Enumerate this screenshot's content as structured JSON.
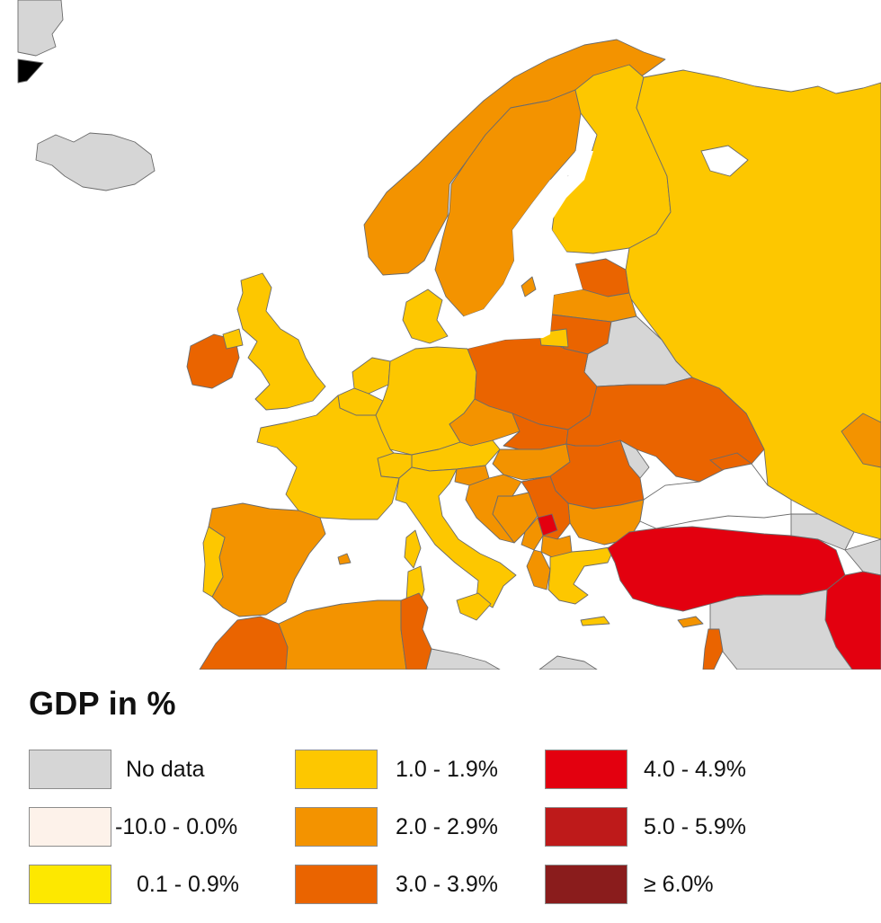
{
  "legend": {
    "title": "GDP in %",
    "items": [
      {
        "id": "no-data",
        "label": "No data",
        "color": "#d6d6d6"
      },
      {
        "id": "neg",
        "label": "-10.0 - 0.0%",
        "color": "#fdf2ea"
      },
      {
        "id": "c01",
        "label": "0.1 - 0.9%",
        "color": "#fde800"
      },
      {
        "id": "c10",
        "label": "1.0 - 1.9%",
        "color": "#fdc700"
      },
      {
        "id": "c20",
        "label": "2.0 - 2.9%",
        "color": "#f39300"
      },
      {
        "id": "c30",
        "label": "3.0 - 3.9%",
        "color": "#ea6400"
      },
      {
        "id": "c40",
        "label": "4.0 - 4.9%",
        "color": "#e3000f"
      },
      {
        "id": "c50",
        "label": "5.0 - 5.9%",
        "color": "#be1a1a"
      },
      {
        "id": "c60",
        "label": "≥ 6.0%",
        "color": "#8a1c1c"
      }
    ]
  },
  "map": {
    "ocean_color": "#ffffff",
    "countries": [
      {
        "name": "greenland",
        "class": "no-data"
      },
      {
        "name": "iceland",
        "class": "no-data"
      },
      {
        "name": "ireland",
        "class": "c30"
      },
      {
        "name": "united-kingdom",
        "class": "c10"
      },
      {
        "name": "norway",
        "class": "c20"
      },
      {
        "name": "sweden",
        "class": "c20"
      },
      {
        "name": "finland",
        "class": "c10"
      },
      {
        "name": "russia",
        "class": "c10"
      },
      {
        "name": "estonia",
        "class": "c30"
      },
      {
        "name": "latvia",
        "class": "c20"
      },
      {
        "name": "lithuania",
        "class": "c30"
      },
      {
        "name": "belarus",
        "class": "no-data"
      },
      {
        "name": "denmark",
        "class": "c10"
      },
      {
        "name": "netherlands",
        "class": "c10"
      },
      {
        "name": "belgium",
        "class": "c10"
      },
      {
        "name": "germany",
        "class": "c10"
      },
      {
        "name": "poland",
        "class": "c30"
      },
      {
        "name": "czechia",
        "class": "c20"
      },
      {
        "name": "slovakia",
        "class": "c30"
      },
      {
        "name": "austria",
        "class": "c10"
      },
      {
        "name": "switzerland",
        "class": "c10"
      },
      {
        "name": "hungary",
        "class": "c20"
      },
      {
        "name": "ukraine",
        "class": "c30"
      },
      {
        "name": "moldova",
        "class": "no-data"
      },
      {
        "name": "romania",
        "class": "c30"
      },
      {
        "name": "bulgaria",
        "class": "c20"
      },
      {
        "name": "france",
        "class": "c10"
      },
      {
        "name": "spain",
        "class": "c20"
      },
      {
        "name": "portugal",
        "class": "c10"
      },
      {
        "name": "italy",
        "class": "c10"
      },
      {
        "name": "slovenia",
        "class": "c20"
      },
      {
        "name": "croatia",
        "class": "c20"
      },
      {
        "name": "bosnia",
        "class": "c20"
      },
      {
        "name": "serbia",
        "class": "c30"
      },
      {
        "name": "kosovo",
        "class": "c40"
      },
      {
        "name": "montenegro",
        "class": "c20"
      },
      {
        "name": "north-macedonia",
        "class": "c20"
      },
      {
        "name": "albania",
        "class": "c20"
      },
      {
        "name": "greece",
        "class": "c10"
      },
      {
        "name": "turkey",
        "class": "c40"
      },
      {
        "name": "georgia",
        "class": "no-data"
      },
      {
        "name": "syria-iraq",
        "class": "no-data"
      },
      {
        "name": "iraq-east",
        "class": "c40"
      },
      {
        "name": "cyprus",
        "class": "c20"
      },
      {
        "name": "morocco",
        "class": "c30"
      },
      {
        "name": "algeria",
        "class": "c20"
      },
      {
        "name": "tunisia",
        "class": "c30"
      },
      {
        "name": "libya",
        "class": "no-data"
      },
      {
        "name": "lebanon-israel",
        "class": "c30"
      }
    ]
  }
}
